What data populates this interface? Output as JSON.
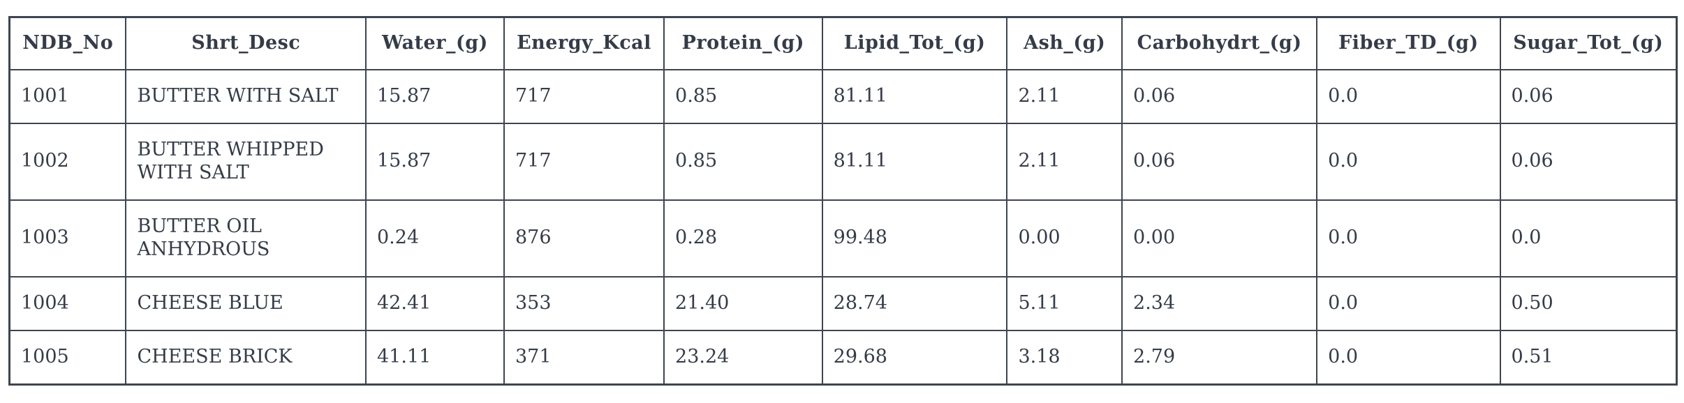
{
  "chart_data": {
    "type": "table",
    "title": "",
    "columns": [
      "NDB_No",
      "Shrt_Desc",
      "Water_(g)",
      "Energy_Kcal",
      "Protein_(g)",
      "Lipid_Tot_(g)",
      "Ash_(g)",
      "Carbohydrt_(g)",
      "Fiber_TD_(g)",
      "Sugar_Tot_(g)"
    ],
    "rows": [
      [
        "1001",
        "BUTTER WITH SALT",
        "15.87",
        "717",
        "0.85",
        "81.11",
        "2.11",
        "0.06",
        "0.0",
        "0.06"
      ],
      [
        "1002",
        "BUTTER WHIPPED WITH SALT",
        "15.87",
        "717",
        "0.85",
        "81.11",
        "2.11",
        "0.06",
        "0.0",
        "0.06"
      ],
      [
        "1003",
        "BUTTER OIL ANHYDROUS",
        "0.24",
        "876",
        "0.28",
        "99.48",
        "0.00",
        "0.00",
        "0.0",
        "0.0"
      ],
      [
        "1004",
        "CHEESE BLUE",
        "42.41",
        "353",
        "21.40",
        "28.74",
        "5.11",
        "2.34",
        "0.0",
        "0.50"
      ],
      [
        "1005",
        "CHEESE BRICK",
        "41.11",
        "371",
        "23.24",
        "29.68",
        "3.18",
        "2.79",
        "0.0",
        "0.51"
      ]
    ],
    "layout": {
      "grid": true,
      "header_style": "bold-centered",
      "body_align": "left"
    },
    "colors": {
      "border": "#3e4450",
      "text": "#353c48",
      "background": "#ffffff"
    }
  }
}
